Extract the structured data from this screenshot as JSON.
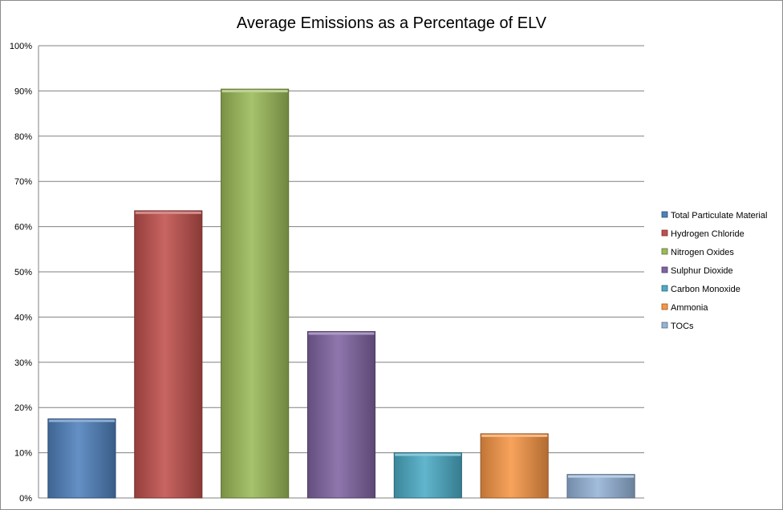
{
  "chart_data": {
    "type": "bar",
    "title": "Average Emissions as a Percentage of ELV",
    "xlabel": "",
    "ylabel": "",
    "ylim": [
      0,
      100
    ],
    "yticks": [
      "0%",
      "10%",
      "20%",
      "30%",
      "40%",
      "50%",
      "60%",
      "70%",
      "80%",
      "90%",
      "100%"
    ],
    "grid": true,
    "legend_position": "right",
    "series": [
      {
        "name": "Total Particulate Material",
        "value": 17.5,
        "color": "#4f81bd"
      },
      {
        "name": "Hydrogen Chloride",
        "value": 63.5,
        "color": "#c0504d"
      },
      {
        "name": "Nitrogen Oxides",
        "value": 90.4,
        "color": "#9bbb59"
      },
      {
        "name": "Sulphur Dioxide",
        "value": 36.8,
        "color": "#8064a2"
      },
      {
        "name": "Carbon Monoxide",
        "value": 10.0,
        "color": "#4bacc6"
      },
      {
        "name": "Ammonia",
        "value": 14.2,
        "color": "#f79646"
      },
      {
        "name": "TOCs",
        "value": 5.2,
        "color": "#95b3d7"
      }
    ]
  }
}
